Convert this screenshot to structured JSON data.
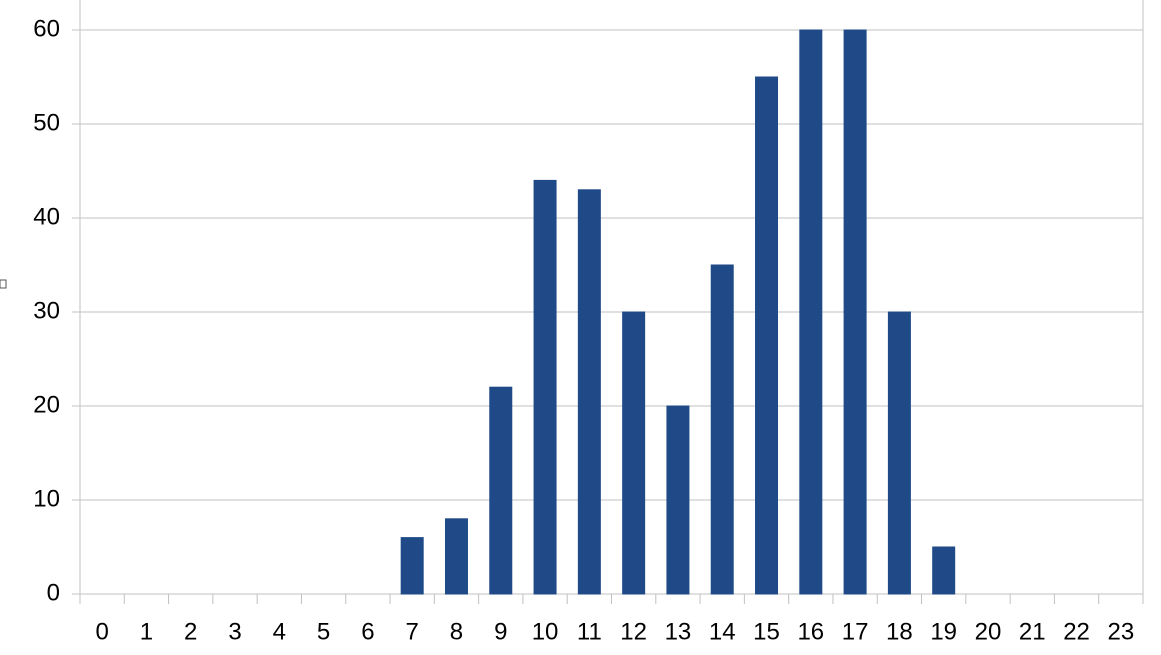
{
  "chart_data": {
    "type": "bar",
    "categories": [
      "0",
      "1",
      "2",
      "3",
      "4",
      "5",
      "6",
      "7",
      "8",
      "9",
      "10",
      "11",
      "12",
      "13",
      "14",
      "15",
      "16",
      "17",
      "18",
      "19",
      "20",
      "21",
      "22",
      "23"
    ],
    "values": [
      0,
      0,
      0,
      0,
      0,
      0,
      0,
      6,
      8,
      22,
      44,
      43,
      30,
      20,
      35,
      55,
      60,
      60,
      30,
      5,
      0,
      0,
      0,
      0
    ],
    "color": "#1f4a87",
    "ylim": [
      0,
      60
    ],
    "yticks": [
      0,
      10,
      20,
      30,
      40,
      50,
      60
    ],
    "grid": true
  }
}
